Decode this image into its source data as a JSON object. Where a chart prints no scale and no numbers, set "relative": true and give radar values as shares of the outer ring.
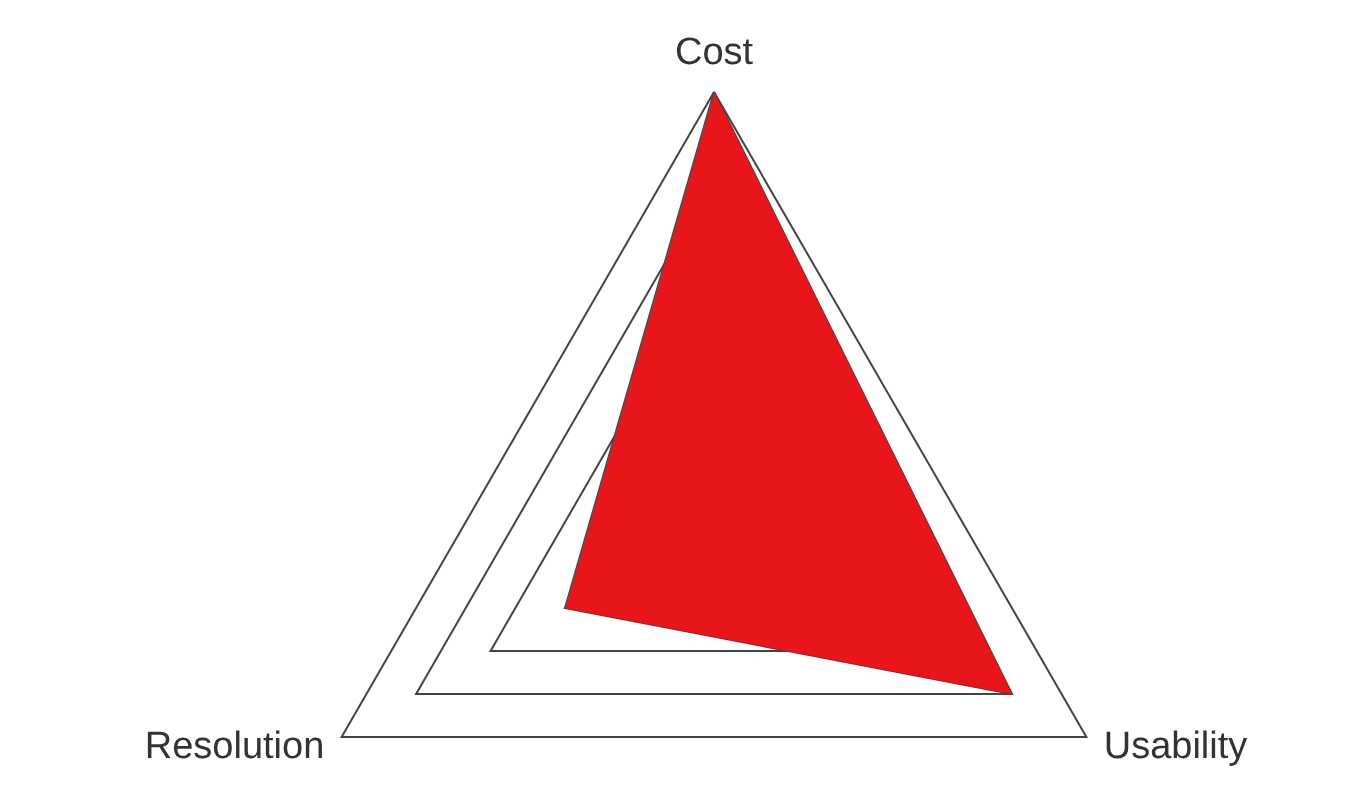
{
  "chart_data": {
    "type": "radar",
    "relative": true,
    "categories": [
      "Cost",
      "Usability",
      "Resolution"
    ],
    "series": [
      {
        "color": "#e8161b",
        "values": [
          1,
          0.8,
          0.4
        ]
      }
    ]
  }
}
